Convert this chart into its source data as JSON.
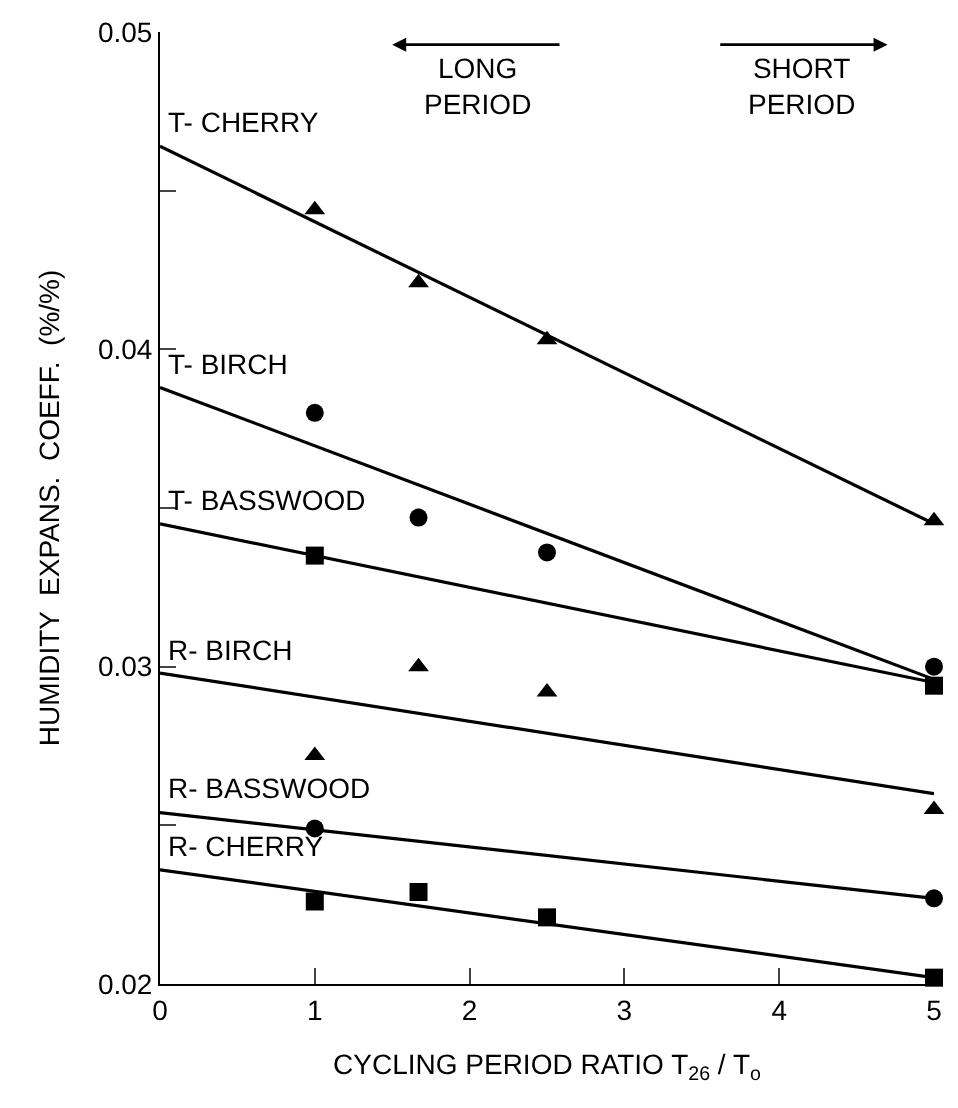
{
  "chart_data": {
    "type": "scatter",
    "xlabel": "CYCLING PERIOD RATIO T$_{26}$ / T$_{o}$",
    "ylabel": "HUMIDITY  EXPANS.  COEFF.  (%/%)",
    "annotations": [
      "LONG PERIOD",
      "SHORT PERIOD"
    ],
    "xlim": [
      0,
      5
    ],
    "xticks": [
      0,
      1,
      2,
      3,
      4,
      5
    ],
    "ylim": [
      0.02,
      0.05
    ],
    "yticks": [
      0.02,
      {
        "value": 0.025,
        "label": null
      },
      0.03,
      {
        "value": 0.035,
        "label": null
      },
      0.04,
      {
        "value": 0.045,
        "label": null
      },
      0.05
    ],
    "series": [
      {
        "marker": "triangle",
        "color": "#000000",
        "x": [
          1,
          1.67,
          2.5,
          5
        ],
        "values": [
          0.0444,
          0.0421,
          0.0403,
          0.0346
        ]
      },
      {
        "type": "line",
        "name": "T- CHERRY",
        "color": "#000000",
        "x": [
          0,
          5
        ],
        "values": [
          0.0464,
          0.0345
        ]
      },
      {
        "marker": "circle",
        "color": "#000000",
        "x": [
          1,
          1.67,
          2.5,
          5
        ],
        "values": [
          0.038,
          0.0347,
          0.0336,
          0.03
        ]
      },
      {
        "type": "line",
        "name": "T- BIRCH",
        "color": "#000000",
        "x": [
          0,
          5
        ],
        "values": [
          0.0388,
          0.0296
        ]
      },
      {
        "marker": "square",
        "color": "#000000",
        "x": [
          1,
          5
        ],
        "values": [
          0.0335,
          0.0294
        ]
      },
      {
        "type": "line",
        "name": "T- BASSWOOD",
        "color": "#000000",
        "x": [
          0,
          5
        ],
        "values": [
          0.0345,
          0.0295
        ]
      },
      {
        "marker": "triangle",
        "color": "#000000",
        "x": [
          1,
          1.67,
          2.5,
          5
        ],
        "values": [
          0.0272,
          0.03,
          0.0292,
          0.0255
        ]
      },
      {
        "type": "line",
        "name": "R- BIRCH",
        "color": "#000000",
        "x": [
          0,
          5
        ],
        "values": [
          0.0298,
          0.026
        ]
      },
      {
        "marker": "circle",
        "color": "#000000",
        "x": [
          1,
          5
        ],
        "values": [
          0.0249,
          0.0227
        ]
      },
      {
        "type": "line",
        "name": "R- BASSWOOD",
        "color": "#000000",
        "x": [
          0,
          5
        ],
        "values": [
          0.0254,
          0.0227
        ]
      },
      {
        "marker": "square",
        "color": "#000000",
        "x": [
          1,
          1.67,
          2.5,
          5
        ],
        "values": [
          0.0226,
          0.0229,
          0.0221,
          0.0202
        ]
      },
      {
        "type": "line",
        "name": "R- CHERRY",
        "color": "#000000",
        "x": [
          0,
          5
        ],
        "values": [
          0.0236,
          0.0202
        ]
      }
    ]
  }
}
